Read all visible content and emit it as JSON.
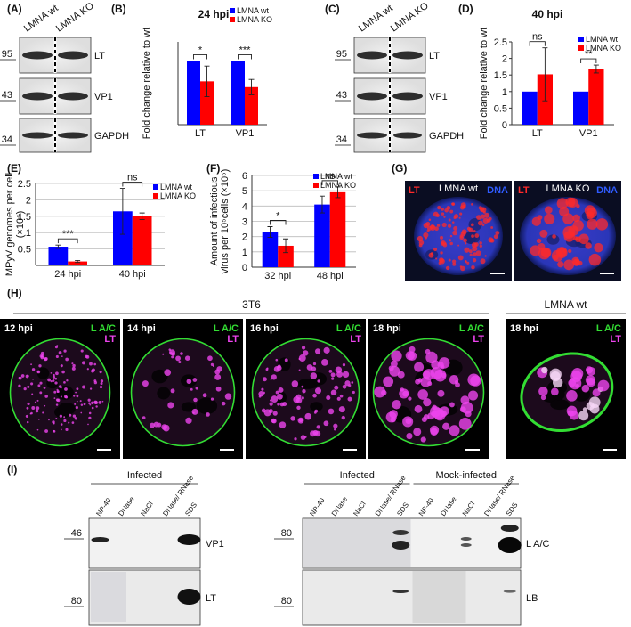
{
  "panel_a": {
    "label": "(A)",
    "lanes": [
      "LMNA wt",
      "LMNA KO"
    ],
    "markers": [
      95,
      43,
      34
    ],
    "bands": [
      "LT",
      "VP1",
      "GAPDH"
    ]
  },
  "panel_c": {
    "label": "(C)",
    "lanes": [
      "LMNA wt",
      "LMNA KO"
    ],
    "markers": [
      95,
      43,
      34
    ],
    "bands": [
      "LT",
      "VP1",
      "GAPDH"
    ]
  },
  "chart_data": [
    {
      "type": "bar",
      "panel": "(B)",
      "title": "24 hpi",
      "ylabel": [
        "Fold change relative to wt"
      ],
      "categories": [
        "LT",
        "VP1"
      ],
      "series": [
        {
          "name": "LMNA wt",
          "color": "#0000ff",
          "values": [
            1,
            1
          ]
        },
        {
          "name": "LMNA KO",
          "color": "#ff0000",
          "values": [
            0.68,
            0.59
          ],
          "errors": [
            0.24,
            0.12
          ]
        }
      ],
      "significance": [
        "*",
        "***"
      ],
      "ylim": [
        0,
        1.3
      ],
      "grid": false,
      "legend": "upper right"
    },
    {
      "type": "bar",
      "panel": "(D)",
      "title": "40 hpi",
      "ylabel": [
        "Fold change relative to wt"
      ],
      "categories": [
        "LT",
        "VP1"
      ],
      "series": [
        {
          "name": "LMNA wt",
          "color": "#0000ff",
          "values": [
            1,
            1
          ]
        },
        {
          "name": "LMNA KO",
          "color": "#ff0000",
          "values": [
            1.52,
            1.68
          ],
          "errors": [
            0.8,
            0.12
          ]
        }
      ],
      "significance": [
        "ns",
        "**"
      ],
      "ylim": [
        0,
        2.5
      ],
      "yticks": [
        0,
        0.5,
        1,
        1.5,
        2,
        2.5
      ],
      "grid": false,
      "legend": "upper right"
    },
    {
      "type": "bar",
      "panel": "(E)",
      "ylabel": [
        "MPyV genomes per cell",
        "(×10⁶)"
      ],
      "categories": [
        "24 hpi",
        "40 hpi"
      ],
      "series": [
        {
          "name": "LMNA wt",
          "color": "#0000ff",
          "values": [
            0.57,
            1.65
          ],
          "errors": [
            0.05,
            0.7
          ]
        },
        {
          "name": "LMNA KO",
          "color": "#ff0000",
          "values": [
            0.12,
            1.5
          ],
          "errors": [
            0.03,
            0.1
          ]
        }
      ],
      "significance": [
        "***",
        "ns"
      ],
      "ylim": [
        0,
        2.5
      ],
      "yticks": [
        0.5,
        1,
        1.5,
        2,
        2.5
      ],
      "grid": true,
      "legend": "upper right"
    },
    {
      "type": "bar",
      "panel": "(F)",
      "ylabel": [
        "Amount of infectious",
        "virus per 10⁵cells (×10⁵)"
      ],
      "categories": [
        "32 hpi",
        "48 hpi"
      ],
      "series": [
        {
          "name": "LMNA wt",
          "color": "#0000ff",
          "values": [
            2.3,
            4.1
          ],
          "errors": [
            0.35,
            0.55
          ]
        },
        {
          "name": "LMNA KO",
          "color": "#ff0000",
          "values": [
            1.4,
            4.9
          ],
          "errors": [
            0.45,
            0.35
          ]
        }
      ],
      "significance": [
        "*",
        "ns"
      ],
      "ylim": [
        0,
        6
      ],
      "yticks": [
        0,
        1,
        2,
        3,
        4,
        5,
        6
      ],
      "grid": true,
      "legend": "upper right"
    }
  ],
  "panel_g": {
    "label": "(G)",
    "stain_colors": [
      "#ff2a2a",
      "#2f5bff"
    ],
    "images": [
      {
        "title": "LMNA wt",
        "stains": [
          "LT",
          "DNA"
        ]
      },
      {
        "title": "LMNA KO",
        "stains": [
          "LT",
          "DNA"
        ]
      }
    ]
  },
  "panel_h": {
    "label": "(H)",
    "stain_colors": [
      "#33dd33",
      "#ee44ee"
    ],
    "groups": [
      {
        "title": "3T6",
        "images": [
          {
            "time": "12 hpi",
            "stains": [
              "L A/C",
              "LT"
            ]
          },
          {
            "time": "14 hpi",
            "stains": [
              "L A/C",
              "LT"
            ]
          },
          {
            "time": "16 hpi",
            "stains": [
              "L A/C",
              "LT"
            ]
          },
          {
            "time": "18 hpi",
            "stains": [
              "L A/C",
              "LT"
            ]
          }
        ]
      },
      {
        "title": "LMNA wt",
        "images": [
          {
            "time": "18 hpi",
            "stains": [
              "L A/C",
              "LT"
            ]
          }
        ]
      }
    ]
  },
  "panel_i": {
    "label": "(I)",
    "left": {
      "groups": [
        {
          "header": "Infected",
          "lanes": [
            "NP-40",
            "DNase",
            "NaCl",
            "DNase/ RNase",
            "SDS"
          ]
        }
      ],
      "markers": [
        46,
        80
      ],
      "bands": [
        "VP1",
        "LT"
      ]
    },
    "right": {
      "groups": [
        {
          "header": "Infected",
          "lanes": [
            "NP-40",
            "DNase",
            "NaCl",
            "DNase/ RNase",
            "SDS"
          ]
        },
        {
          "header": "Mock-infected",
          "lanes": [
            "NP-40",
            "DNase",
            "NaCl",
            "DNase/ RNase",
            "SDS"
          ]
        }
      ],
      "markers": [
        80,
        80
      ],
      "bands": [
        "L A/C",
        "LB"
      ]
    }
  }
}
